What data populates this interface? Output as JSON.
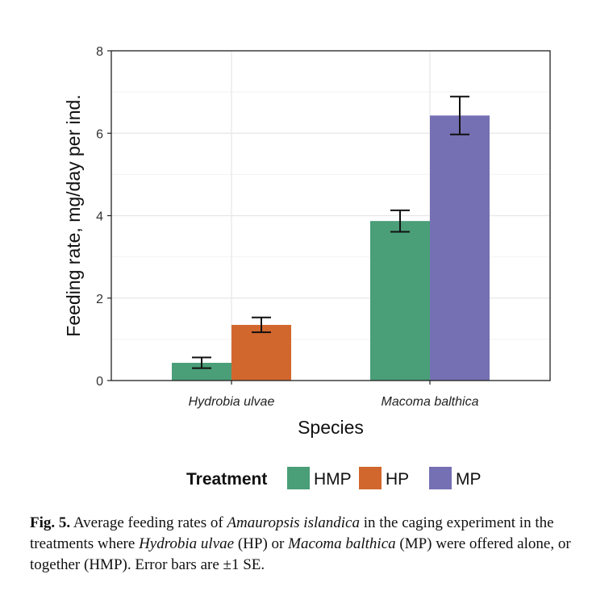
{
  "chart_data": {
    "type": "bar",
    "xlabel": "Species",
    "ylabel": "Feeding rate, mg/day per ind.",
    "ylim": [
      0,
      8
    ],
    "yticks": [
      0,
      2,
      4,
      6,
      8
    ],
    "grid": true,
    "categories": [
      "Hydrobia ulvae",
      "Macoma balthica"
    ],
    "legend": {
      "title": "Treatment",
      "placement": "bottom",
      "entries": [
        "HMP",
        "HP",
        "MP"
      ]
    },
    "colors": {
      "HMP": "#4a9e78",
      "HP": "#d2672e",
      "MP": "#7570b3"
    },
    "bars": [
      {
        "category": "Hydrobia ulvae",
        "series": "HMP",
        "value": 0.43,
        "se": 0.13
      },
      {
        "category": "Hydrobia ulvae",
        "series": "HP",
        "value": 1.35,
        "se": 0.18
      },
      {
        "category": "Macoma balthica",
        "series": "HMP",
        "value": 3.87,
        "se": 0.26
      },
      {
        "category": "Macoma balthica",
        "series": "MP",
        "value": 6.43,
        "se": 0.46
      }
    ]
  },
  "caption": {
    "label": "Fig. 5.",
    "text_1": " Average feeding rates of ",
    "italic_1": "Amauropsis islandica",
    "text_2": " in the caging experiment in the treatments where ",
    "italic_2": "Hydrobia ulvae",
    "text_3": " (HP) or ",
    "italic_3": "Macoma balthica",
    "text_4": " (MP) were offered alone, or together (HMP). Error bars are ±1 SE."
  }
}
